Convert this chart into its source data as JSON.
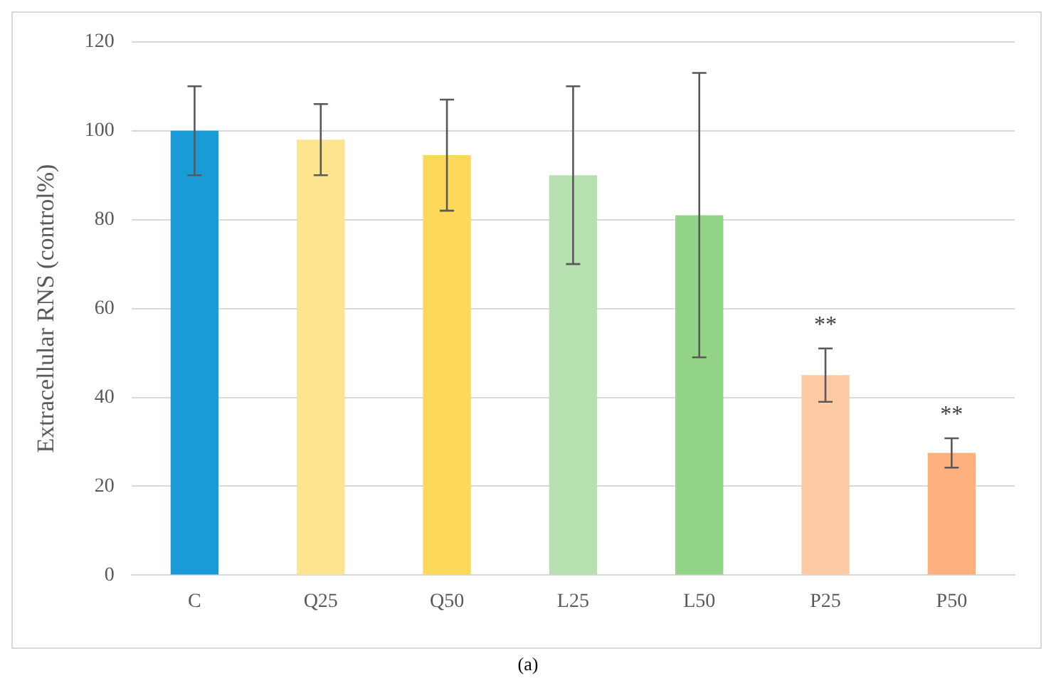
{
  "chart_data": {
    "type": "bar",
    "ylabel": "Extracellular RNS (control%)",
    "categories": [
      "C",
      "Q25",
      "Q50",
      "L25",
      "L50",
      "P25",
      "P50"
    ],
    "values": [
      100,
      98,
      94.5,
      90,
      81,
      45,
      27.5
    ],
    "errors": [
      10,
      8,
      12.5,
      20,
      32,
      6,
      3.3
    ],
    "colors": [
      "#1a9bd7",
      "#fee48f",
      "#fed85b",
      "#b7e0b0",
      "#93d488",
      "#fecaa5",
      "#feb07d"
    ],
    "ylim": [
      0,
      120
    ],
    "yticks": [
      0,
      20,
      40,
      60,
      80,
      100,
      120
    ],
    "grid": "y",
    "legend": false,
    "annotations": [
      {
        "text": "**",
        "x": "P25",
        "y": 51
      },
      {
        "text": "**",
        "x": "P50",
        "y": 30.8
      },
      "(a)"
    ]
  }
}
